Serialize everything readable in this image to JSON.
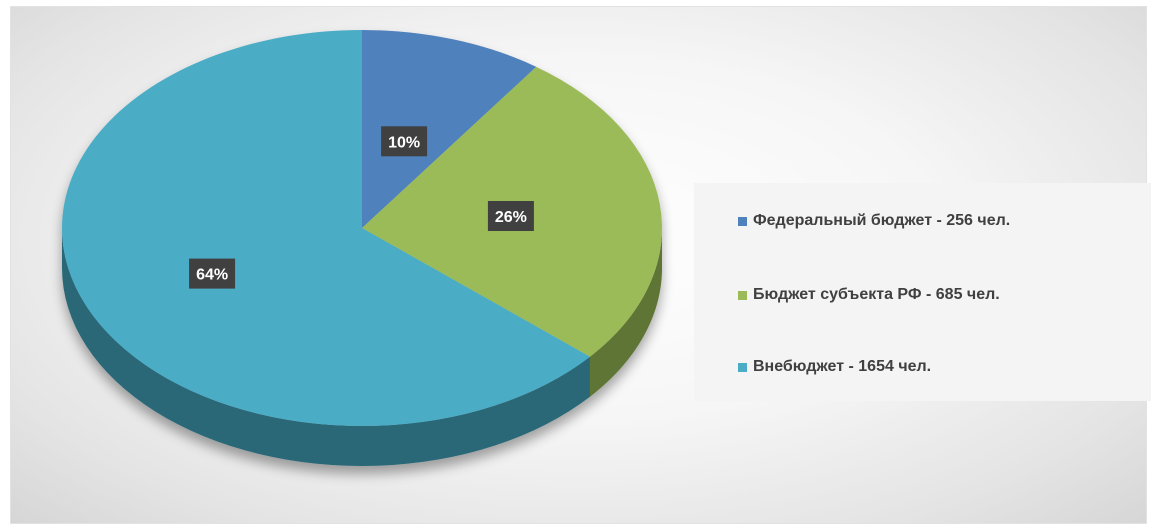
{
  "chart_data": {
    "type": "pie",
    "style": "3d",
    "categories": [
      "Федеральный бюджет - 256 чел.",
      "Бюджет субъекта РФ - 685 чел.",
      "Внебюджет - 1654 чел."
    ],
    "values": [
      256,
      685,
      1654
    ],
    "percent_labels": [
      "10%",
      "26%",
      "64%"
    ],
    "colors": [
      "#4F81BD",
      "#9BBB59",
      "#4BACC6"
    ],
    "side_colors": [
      "#2F5280",
      "#5E7535",
      "#2A6878"
    ],
    "legend_position": "right"
  }
}
